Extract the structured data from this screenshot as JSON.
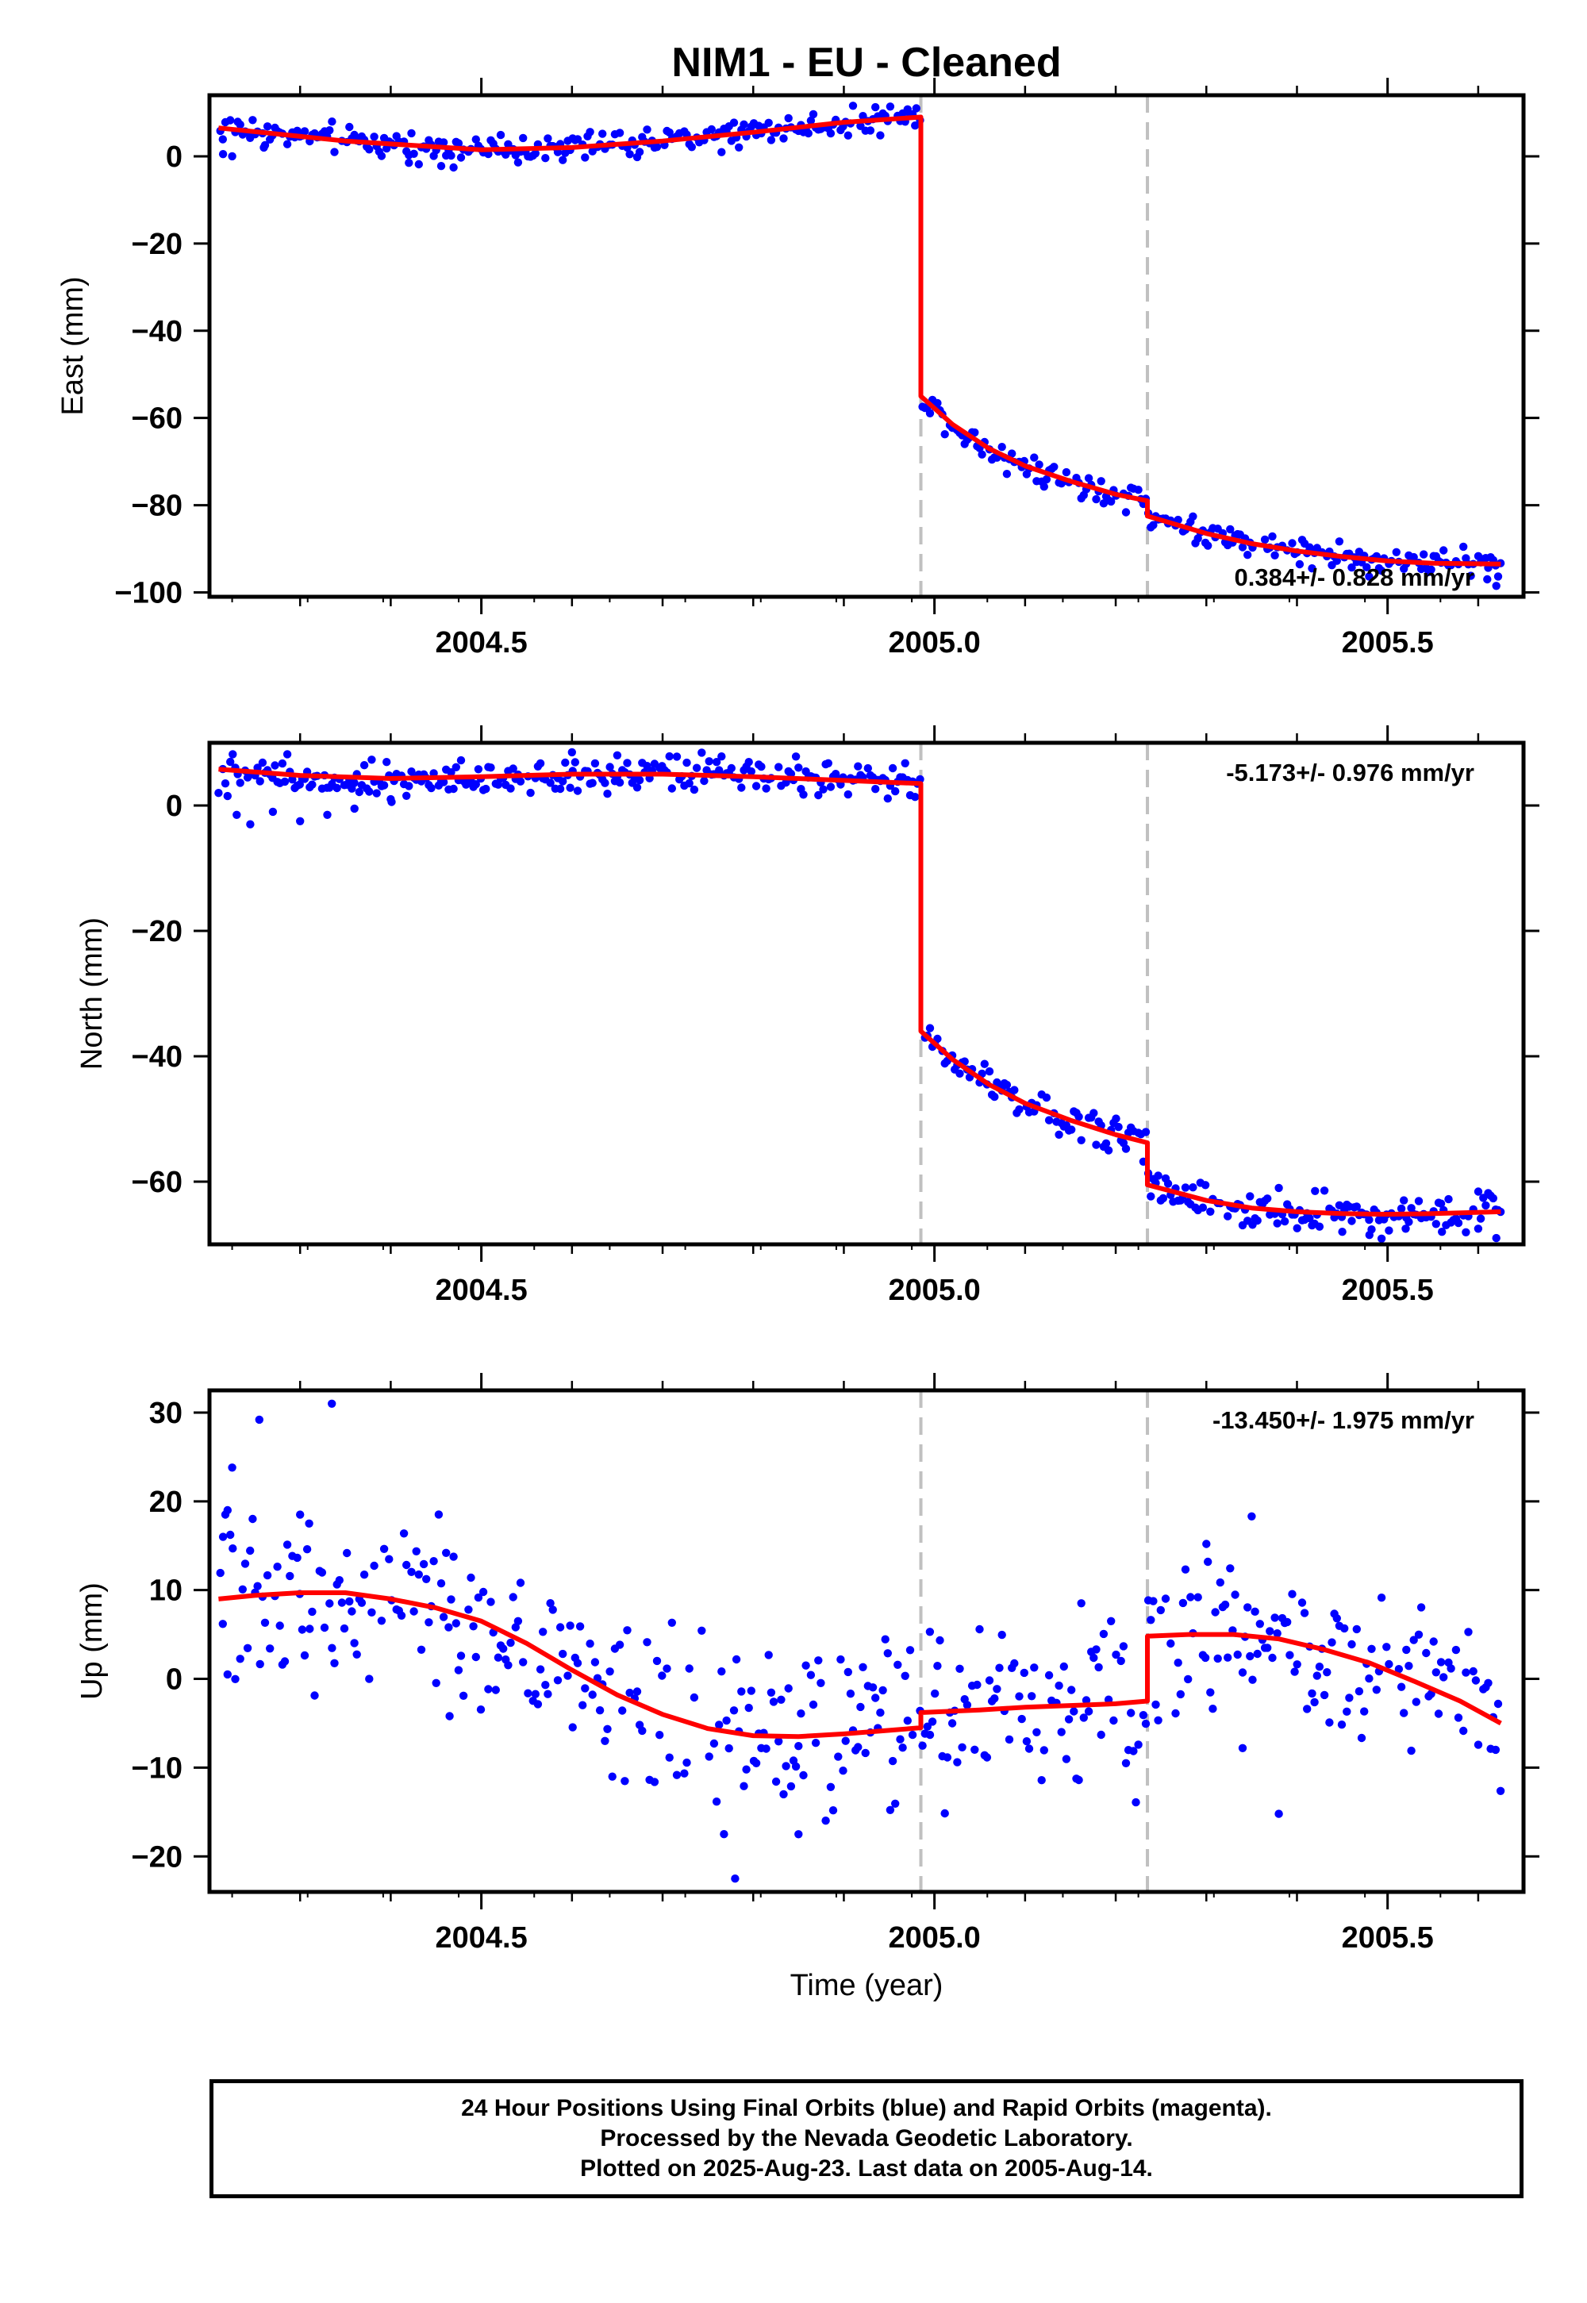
{
  "title": "NIM1  - EU - Cleaned",
  "xlabel": "Time (year)",
  "colors": {
    "data": "#0000ff",
    "model": "#ff0000",
    "offset_line": "#c0c0c0"
  },
  "footer": {
    "line1": "24 Hour Positions Using Final Orbits (blue) and Rapid Orbits (magenta).",
    "line2": "Processed by the Nevada Geodetic Laboratory.",
    "line3": "Plotted on 2025-Aug-23. Last data on 2005-Aug-14."
  },
  "chart_data": [
    {
      "type": "scatter",
      "component": "east",
      "ylabel": "East (mm)",
      "xlim": [
        2004.2,
        2005.65
      ],
      "ylim": [
        -101,
        14
      ],
      "xticks": [
        {
          "v": 2004.5,
          "label": "2004.5"
        },
        {
          "v": 2005.0,
          "label": "2005.0"
        },
        {
          "v": 2005.5,
          "label": "2005.5"
        }
      ],
      "yticks": [
        {
          "v": 0,
          "label": "0"
        },
        {
          "v": -20,
          "label": "−20"
        },
        {
          "v": -40,
          "label": "−40"
        },
        {
          "v": -60,
          "label": "−60"
        },
        {
          "v": -80,
          "label": "−80"
        },
        {
          "v": -100,
          "label": "−100"
        }
      ],
      "offsets": [
        2004.985,
        2005.235
      ],
      "rate_label": "0.384+/- 0.828 mm/yr",
      "rate_position": "bottom-right",
      "model": [
        {
          "t0": 2004.21,
          "t1": 2004.985,
          "pts": [
            [
              2004.21,
              6.5
            ],
            [
              2004.35,
              3.5
            ],
            [
              2004.5,
              1.5
            ],
            [
              2004.6,
              2.0
            ],
            [
              2004.7,
              3.5
            ],
            [
              2004.8,
              5.5
            ],
            [
              2004.9,
              7.8
            ],
            [
              2004.985,
              9.0
            ]
          ]
        },
        {
          "t0": 2004.985,
          "t1": 2005.235,
          "pts": [
            [
              2004.985,
              -55
            ],
            [
              2005.02,
              -61.5
            ],
            [
              2005.06,
              -67
            ],
            [
              2005.1,
              -71
            ],
            [
              2005.15,
              -74.5
            ],
            [
              2005.2,
              -77.5
            ],
            [
              2005.235,
              -79
            ]
          ]
        },
        {
          "t0": 2005.235,
          "t1": 2005.625,
          "pts": [
            [
              2005.235,
              -82.5
            ],
            [
              2005.3,
              -86.5
            ],
            [
              2005.35,
              -88.8
            ],
            [
              2005.4,
              -90.5
            ],
            [
              2005.45,
              -91.8
            ],
            [
              2005.5,
              -92.8
            ],
            [
              2005.55,
              -93.3
            ],
            [
              2005.625,
              -93.5
            ]
          ]
        }
      ],
      "points": {
        "noise": 1.6,
        "extra": [
          [
            2004.215,
            0.5
          ],
          [
            2004.225,
            0.0
          ],
          [
            2004.26,
            2.0
          ],
          [
            2004.42,
            -1.5
          ],
          [
            2005.61,
            -97
          ],
          [
            2005.62,
            -98.5
          ],
          [
            2004.98,
            11
          ]
        ]
      }
    },
    {
      "type": "scatter",
      "component": "north",
      "ylabel": "North (mm)",
      "xlim": [
        2004.2,
        2005.65
      ],
      "ylim": [
        -70,
        10
      ],
      "xticks": [
        {
          "v": 2004.5,
          "label": "2004.5"
        },
        {
          "v": 2005.0,
          "label": "2005.0"
        },
        {
          "v": 2005.5,
          "label": "2005.5"
        }
      ],
      "yticks": [
        {
          "v": 0,
          "label": "0"
        },
        {
          "v": -20,
          "label": "−20"
        },
        {
          "v": -40,
          "label": "−40"
        },
        {
          "v": -60,
          "label": "−60"
        }
      ],
      "offsets": [
        2004.985,
        2005.235
      ],
      "rate_label": "-5.173+/- 0.976 mm/yr",
      "rate_position": "top-right",
      "model": [
        {
          "t0": 2004.21,
          "t1": 2004.985,
          "pts": [
            [
              2004.21,
              5.8
            ],
            [
              2004.3,
              4.8
            ],
            [
              2004.4,
              4.3
            ],
            [
              2004.5,
              4.6
            ],
            [
              2004.6,
              5.0
            ],
            [
              2004.7,
              5.0
            ],
            [
              2004.8,
              4.6
            ],
            [
              2004.9,
              4.0
            ],
            [
              2004.985,
              3.5
            ]
          ]
        },
        {
          "t0": 2004.985,
          "t1": 2005.235,
          "pts": [
            [
              2004.985,
              -36
            ],
            [
              2005.02,
              -40.5
            ],
            [
              2005.06,
              -44.5
            ],
            [
              2005.1,
              -47.5
            ],
            [
              2005.15,
              -50.2
            ],
            [
              2005.2,
              -52.5
            ],
            [
              2005.235,
              -53.8
            ]
          ]
        },
        {
          "t0": 2005.235,
          "t1": 2005.625,
          "pts": [
            [
              2005.235,
              -60.5
            ],
            [
              2005.3,
              -63.0
            ],
            [
              2005.35,
              -64.2
            ],
            [
              2005.4,
              -64.8
            ],
            [
              2005.45,
              -65.1
            ],
            [
              2005.5,
              -65.2
            ],
            [
              2005.55,
              -65.1
            ],
            [
              2005.625,
              -64.8
            ]
          ]
        }
      ],
      "points": {
        "noise": 1.4,
        "extra": [
          [
            2004.21,
            2.0
          ],
          [
            2004.22,
            1.5
          ],
          [
            2004.23,
            -1.5
          ],
          [
            2004.245,
            -3.0
          ],
          [
            2004.27,
            -1.0
          ],
          [
            2004.3,
            -2.5
          ],
          [
            2004.33,
            -1.5
          ],
          [
            2004.36,
            -0.5
          ],
          [
            2004.4,
            1.0
          ],
          [
            2004.6,
            8.5
          ],
          [
            2004.65,
            8.0
          ],
          [
            2005.45,
            -68
          ],
          [
            2005.48,
            -68.5
          ],
          [
            2005.52,
            -67.5
          ],
          [
            2005.56,
            -68
          ],
          [
            2005.6,
            -67.5
          ],
          [
            2005.62,
            -69
          ],
          [
            2005.42,
            -61.5
          ],
          [
            2005.38,
            -61
          ]
        ]
      }
    },
    {
      "type": "scatter",
      "component": "up",
      "ylabel": "Up (mm)",
      "xlim": [
        2004.2,
        2005.65
      ],
      "ylim": [
        -24,
        32.5
      ],
      "xticks": [
        {
          "v": 2004.5,
          "label": "2004.5"
        },
        {
          "v": 2005.0,
          "label": "2005.0"
        },
        {
          "v": 2005.5,
          "label": "2005.5"
        }
      ],
      "yticks": [
        {
          "v": 30,
          "label": "30"
        },
        {
          "v": 20,
          "label": "20"
        },
        {
          "v": 10,
          "label": "10"
        },
        {
          "v": 0,
          "label": "0"
        },
        {
          "v": -10,
          "label": "−10"
        },
        {
          "v": -20,
          "label": "−20"
        }
      ],
      "offsets": [
        2004.985,
        2005.235
      ],
      "rate_label": "-13.450+/- 1.975 mm/yr",
      "rate_position": "top-right",
      "model": [
        {
          "t0": 2004.21,
          "t1": 2004.985,
          "pts": [
            [
              2004.21,
              9.0
            ],
            [
              2004.25,
              9.4
            ],
            [
              2004.3,
              9.7
            ],
            [
              2004.35,
              9.7
            ],
            [
              2004.4,
              9.0
            ],
            [
              2004.45,
              8.0
            ],
            [
              2004.5,
              6.5
            ],
            [
              2004.55,
              4.0
            ],
            [
              2004.6,
              1.0
            ],
            [
              2004.65,
              -1.8
            ],
            [
              2004.7,
              -4.0
            ],
            [
              2004.75,
              -5.6
            ],
            [
              2004.8,
              -6.4
            ],
            [
              2004.85,
              -6.5
            ],
            [
              2004.9,
              -6.2
            ],
            [
              2004.95,
              -5.8
            ],
            [
              2004.985,
              -5.5
            ]
          ]
        },
        {
          "t0": 2004.985,
          "t1": 2005.235,
          "pts": [
            [
              2004.985,
              -3.8
            ],
            [
              2005.05,
              -3.5
            ],
            [
              2005.1,
              -3.2
            ],
            [
              2005.15,
              -3.0
            ],
            [
              2005.2,
              -2.8
            ],
            [
              2005.235,
              -2.5
            ]
          ]
        },
        {
          "t0": 2005.235,
          "t1": 2005.625,
          "pts": [
            [
              2005.235,
              4.8
            ],
            [
              2005.28,
              5.0
            ],
            [
              2005.33,
              5.0
            ],
            [
              2005.38,
              4.5
            ],
            [
              2005.43,
              3.3
            ],
            [
              2005.48,
              1.8
            ],
            [
              2005.53,
              -0.3
            ],
            [
              2005.58,
              -2.5
            ],
            [
              2005.625,
              -5.0
            ]
          ]
        }
      ],
      "points": {
        "noise": 4.6,
        "extra": [
          [
            2004.255,
            29.2
          ],
          [
            2004.335,
            31.0
          ],
          [
            2004.225,
            23.8
          ],
          [
            2004.22,
            19.0
          ],
          [
            2004.215,
            16.0
          ],
          [
            2004.3,
            18.5
          ],
          [
            2004.31,
            17.5
          ],
          [
            2004.22,
            0.5
          ],
          [
            2004.465,
            -4.2
          ],
          [
            2004.78,
            -22.5
          ],
          [
            2004.85,
            -17.5
          ],
          [
            2005.3,
            15.2
          ],
          [
            2005.35,
            18.3
          ],
          [
            2005.38,
            -15.2
          ],
          [
            2005.34,
            -7.8
          ],
          [
            2004.995,
            5.3
          ]
        ]
      }
    }
  ]
}
